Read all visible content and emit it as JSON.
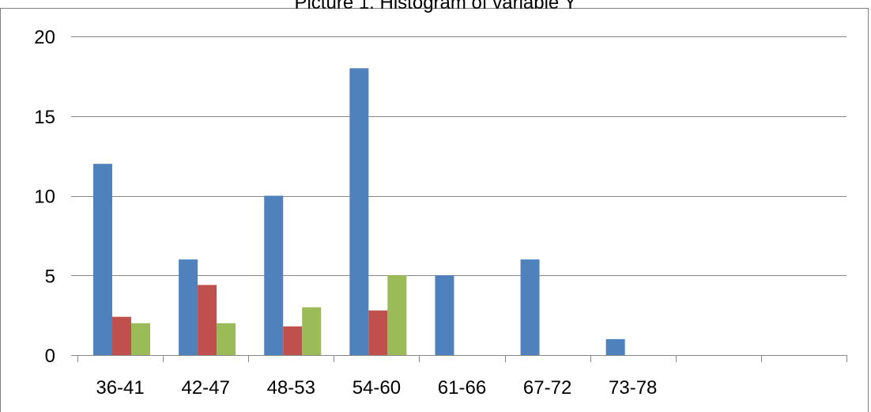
{
  "chart_data": {
    "type": "bar",
    "title": "Picture 1. Histogram of variable Y",
    "xlabel": "",
    "ylabel": "",
    "categories": [
      "36-41",
      "42-47",
      "48-53",
      "54-60",
      "61-66",
      "67-72",
      "73-78",
      "",
      ""
    ],
    "ylim": [
      0,
      20
    ],
    "yticks": [
      0,
      5,
      10,
      15,
      20
    ],
    "grid": true,
    "legend": "none",
    "series": [
      {
        "values": [
          12,
          6,
          10,
          18,
          5,
          6,
          1,
          null,
          null
        ],
        "color": "#4f81bd"
      },
      {
        "values": [
          2.4,
          4.4,
          1.8,
          2.8,
          null,
          null,
          null,
          null,
          null
        ],
        "color": "#c0504d"
      },
      {
        "values": [
          2,
          2,
          3,
          5,
          null,
          null,
          null,
          null,
          null
        ],
        "color": "#9bbb59"
      }
    ]
  }
}
